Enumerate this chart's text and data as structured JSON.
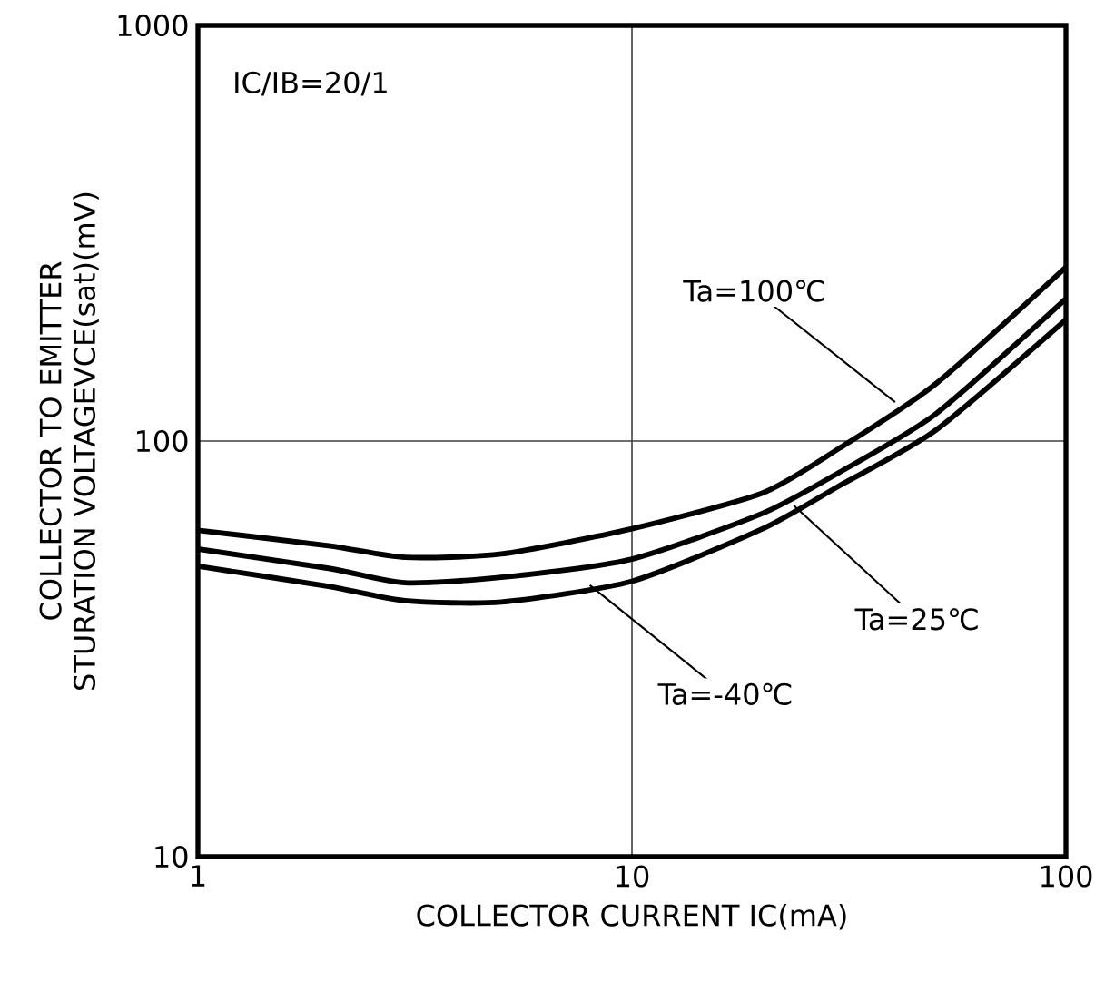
{
  "chart_data": {
    "type": "line",
    "xlabel": "COLLECTOR CURRENT  IC(mA)",
    "ylabel": "COLLECTOR TO EMITTER STURATION VOLTAGEVCE(sat)(mV)",
    "log": "xy",
    "xlim": [
      1,
      100
    ],
    "ylim": [
      10,
      1000
    ],
    "xticks": [
      1,
      10,
      100
    ],
    "yticks": [
      10,
      100,
      1000
    ],
    "grid": true,
    "marker": "none",
    "line_style": "solid",
    "x": [
      1,
      2,
      3,
      5,
      10,
      20,
      30,
      50,
      100
    ],
    "series": [
      {
        "color": "#000000",
        "values": [
          61,
          56,
          52.5,
          53.5,
          61.5,
          75,
          96,
          137,
          262
        ]
      },
      {
        "color": "#000000",
        "values": [
          55,
          49.4,
          45.6,
          47,
          52,
          67,
          84,
          116,
          220
        ]
      },
      {
        "color": "#000000",
        "values": [
          50,
          44.7,
          41.3,
          41,
          46,
          61.5,
          78,
          106,
          196
        ]
      }
    ],
    "annotations": [
      "IC/IB=20/1",
      {
        "text": "Ta=100℃",
        "x": 40.4,
        "y": 124
      },
      {
        "text": "Ta=25℃",
        "x": 23.6,
        "y": 70
      },
      {
        "text": "Ta=-40℃",
        "x": 8.0,
        "y": 45
      }
    ]
  }
}
